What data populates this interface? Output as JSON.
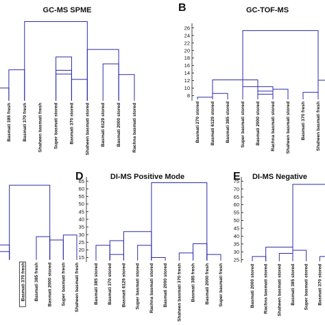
{
  "figure": {
    "background": "#ffffff",
    "line_color": "#2a2aa8"
  },
  "chart_data": [
    {
      "type": "dendrogram",
      "panel_letter": "",
      "title": "GC-MS SPME",
      "yticks": [],
      "leaves": [
        "",
        "Basmati 385 fresh",
        "Basmati 370 fresh",
        "Shaheen basmati fresh",
        "Super basmati stored",
        "Basmati 370 stored",
        "Shaheen basmati stored",
        "Basmati 6129 stored",
        "Basmati 2000 stored",
        "Rachna basmati stored"
      ],
      "boxed_leaf": null,
      "links": [
        {
          "a": 0,
          "b": 1,
          "h": 0.24
        },
        {
          "a": 1,
          "b": 2,
          "h": 0.58
        },
        {
          "a": 4,
          "b": 5,
          "h": 0.5
        },
        {
          "a": 5,
          "b": 6,
          "h": 0.4
        },
        {
          "a": 4,
          "b": 5,
          "h": 0.57
        },
        {
          "a": 4,
          "b": 5,
          "h": 0.82
        },
        {
          "a": 7,
          "b": 8,
          "h": 0.69
        },
        {
          "a": 8,
          "b": 9,
          "h": 0.49
        },
        {
          "a": 6,
          "b": 8,
          "h": 0.96
        },
        {
          "a": 2,
          "b": 6,
          "h": 1.48
        }
      ]
    },
    {
      "type": "dendrogram",
      "panel_letter": "B",
      "title": "GC-TOF-MS",
      "yticks": [
        "8",
        "10",
        "12",
        "14",
        "16",
        "18",
        "20",
        "22",
        "24",
        "26"
      ],
      "yrange": [
        7,
        26.5
      ],
      "leaves": [
        "Basmati 270 stored",
        "Basmati 6129 stored",
        "Basmati 385 stored",
        "Super basmati stored",
        "Basmati 2000 stored",
        "Rachna basmati stored",
        "Shaheen basmati stored",
        "Basmati 370 fresh",
        "Shaheen basmati fresh",
        ""
      ],
      "boxed_leaf": null,
      "links": [
        {
          "a": 0,
          "b": 1,
          "h": 7.6
        },
        {
          "a": 1,
          "b": 2,
          "h": 8.6
        },
        {
          "a": 4,
          "b": 5,
          "h": 8.4
        },
        {
          "a": 4,
          "b": 5,
          "h": 9.2
        },
        {
          "a": 5,
          "b": 6,
          "h": 9.7
        },
        {
          "a": 3,
          "b": 5,
          "h": 10.4
        },
        {
          "a": 1,
          "b": 4,
          "h": 12.2
        },
        {
          "a": 7,
          "b": 8,
          "h": 8.9
        },
        {
          "a": 8,
          "b": 9,
          "h": 12.1
        },
        {
          "a": 3,
          "b": 8,
          "h": 25.3
        }
      ]
    },
    {
      "type": "dendrogram",
      "panel_letter": "",
      "title": "",
      "yticks": [],
      "leaves": [
        "Basmati 2000 stored",
        "",
        "Basmati 370 fresh",
        "Basmati 385 fresh",
        "Basmati 2000 stored",
        "Super basmati fresh",
        "Shaheen basmati fresh"
      ],
      "boxed_leaf": 2,
      "links": [
        {
          "a": 0,
          "b": 1,
          "h": 0.1
        },
        {
          "a": 0,
          "b": 1,
          "h": 0.18
        },
        {
          "a": 3,
          "b": 4,
          "h": 0.28
        },
        {
          "a": 4,
          "b": 5,
          "h": 0.24
        },
        {
          "a": 5,
          "b": 6,
          "h": 0.3
        },
        {
          "a": 1,
          "b": 4,
          "h": 0.9
        }
      ]
    },
    {
      "type": "dendrogram",
      "panel_letter": "D",
      "title": "DI-MS Positive Mode",
      "yticks": [
        "15",
        "20",
        "25",
        "30",
        "35",
        "40",
        "45",
        "50",
        "55",
        "60",
        "65"
      ],
      "yrange": [
        13,
        66
      ],
      "leaves": [
        "Basmati 385 stored",
        "Basmati 370 stored",
        "Basmati 6129 stored",
        "Super basmati stored",
        "Rachna basmati stored",
        "Basmati 2000 stored",
        "Shaheen basmati 370 fresh",
        "Basmati 385 fresh",
        "Basmati 2000 fresh",
        "Super basmati fresh"
      ],
      "boxed_leaf": null,
      "links": [
        {
          "a": 0,
          "b": 1,
          "h": 23
        },
        {
          "a": 1,
          "b": 2,
          "h": 17
        },
        {
          "a": 1,
          "b": 2,
          "h": 26
        },
        {
          "a": 4,
          "b": 5,
          "h": 15
        },
        {
          "a": 3,
          "b": 4,
          "h": 23
        },
        {
          "a": 2,
          "b": 4,
          "h": 32
        },
        {
          "a": 6,
          "b": 7,
          "h": 18
        },
        {
          "a": 7,
          "b": 8,
          "h": 24
        },
        {
          "a": 8,
          "b": 9,
          "h": 17
        },
        {
          "a": 4,
          "b": 8,
          "h": 64
        }
      ]
    },
    {
      "type": "dendrogram",
      "panel_letter": "E",
      "title": "DI-MS Negative",
      "yticks": [
        "25",
        "30",
        "35",
        "40",
        "45",
        "50",
        "55",
        "60",
        "65",
        "70",
        "75"
      ],
      "yrange": [
        24,
        76
      ],
      "leaves": [
        "Basmati 2000 stored",
        "Rachna basmati stored",
        "Shaheen basmati stored",
        "Basmati 385 stored",
        "Super basmati stored",
        "Basmati 370 stored",
        "Basmati 6129 stored"
      ],
      "boxed_leaf": null,
      "links": [
        {
          "a": 0,
          "b": 1,
          "h": 27
        },
        {
          "a": 2,
          "b": 3,
          "h": 29
        },
        {
          "a": 3,
          "b": 4,
          "h": 31
        },
        {
          "a": 1,
          "b": 3,
          "h": 33
        },
        {
          "a": 5,
          "b": 6,
          "h": 27
        },
        {
          "a": 6,
          "b": 7,
          "h": 30
        },
        {
          "a": 3,
          "b": 6,
          "h": 73
        }
      ]
    }
  ]
}
